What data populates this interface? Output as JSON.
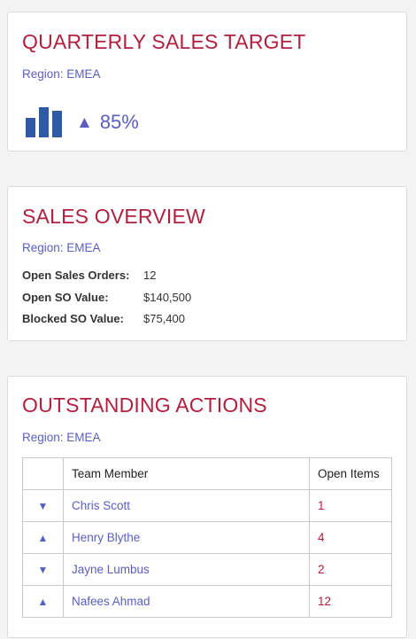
{
  "colors": {
    "title": "#b1203f",
    "accent": "#5a5fbf",
    "bar": "#2d59a6",
    "item_count": "#b1203f"
  },
  "target_card": {
    "title": "QUARTERLY SALES TARGET",
    "region": "Region: EMEA",
    "chart_icon": "bar-chart-icon",
    "trend_icon": "triangle-up-icon",
    "trend_glyph": "▲",
    "percent": "85%"
  },
  "overview_card": {
    "title": "SALES OVERVIEW",
    "region": "Region: EMEA",
    "rows": [
      {
        "label": "Open Sales Orders:",
        "value": "12"
      },
      {
        "label": "Open SO Value:",
        "value": "$140,500"
      },
      {
        "label": "Blocked SO Value:",
        "value": "$75,400"
      }
    ]
  },
  "actions_card": {
    "title": "OUTSTANDING ACTIONS",
    "region": "Region: EMEA",
    "columns": [
      "",
      "Team Member",
      "Open Items"
    ],
    "rows": [
      {
        "trend": "down",
        "trend_glyph": "▼",
        "member": "Chris Scott",
        "items": "1"
      },
      {
        "trend": "up",
        "trend_glyph": "▲",
        "member": "Henry Blythe",
        "items": "4"
      },
      {
        "trend": "down",
        "trend_glyph": "▼",
        "member": "Jayne Lumbus",
        "items": "2"
      },
      {
        "trend": "up",
        "trend_glyph": "▲",
        "member": "Nafees Ahmad",
        "items": "12"
      }
    ]
  }
}
